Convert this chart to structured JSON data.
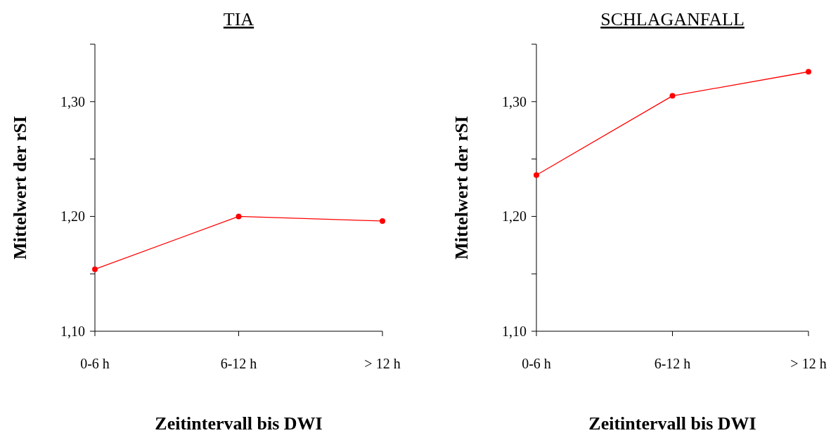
{
  "chart_data": [
    {
      "type": "line",
      "title": "TIA",
      "xlabel": "Zeitintervall bis DWI",
      "ylabel": "Mittelwert der rSI",
      "categories": [
        "0-6 h",
        "6-12 h",
        "> 12 h"
      ],
      "series": [
        {
          "color": "#ff0000",
          "values": [
            1.154,
            1.2,
            1.196
          ]
        }
      ],
      "ylim": [
        1.1,
        1.35
      ],
      "yticks": [
        {
          "value": 1.1,
          "label": "1,10"
        },
        {
          "value": 1.15,
          "label": null
        },
        {
          "value": 1.2,
          "label": "1,20"
        },
        {
          "value": 1.25,
          "label": null
        },
        {
          "value": 1.3,
          "label": "1,30"
        },
        {
          "value": 1.35,
          "label": null
        }
      ],
      "marker": "circle",
      "line_style": "solid"
    },
    {
      "type": "line",
      "title": "SCHLAGANFALL",
      "xlabel": "Zeitintervall bis DWI",
      "ylabel": "Mittelwert der rSI",
      "categories": [
        "0-6 h",
        "6-12 h",
        "> 12 h"
      ],
      "series": [
        {
          "color": "#ff0000",
          "values": [
            1.236,
            1.305,
            1.326
          ]
        }
      ],
      "ylim": [
        1.1,
        1.35
      ],
      "yticks": [
        {
          "value": 1.1,
          "label": "1,10"
        },
        {
          "value": 1.15,
          "label": null
        },
        {
          "value": 1.2,
          "label": "1,20"
        },
        {
          "value": 1.25,
          "label": null
        },
        {
          "value": 1.3,
          "label": "1,30"
        },
        {
          "value": 1.35,
          "label": null
        }
      ],
      "marker": "circle",
      "line_style": "solid"
    }
  ]
}
